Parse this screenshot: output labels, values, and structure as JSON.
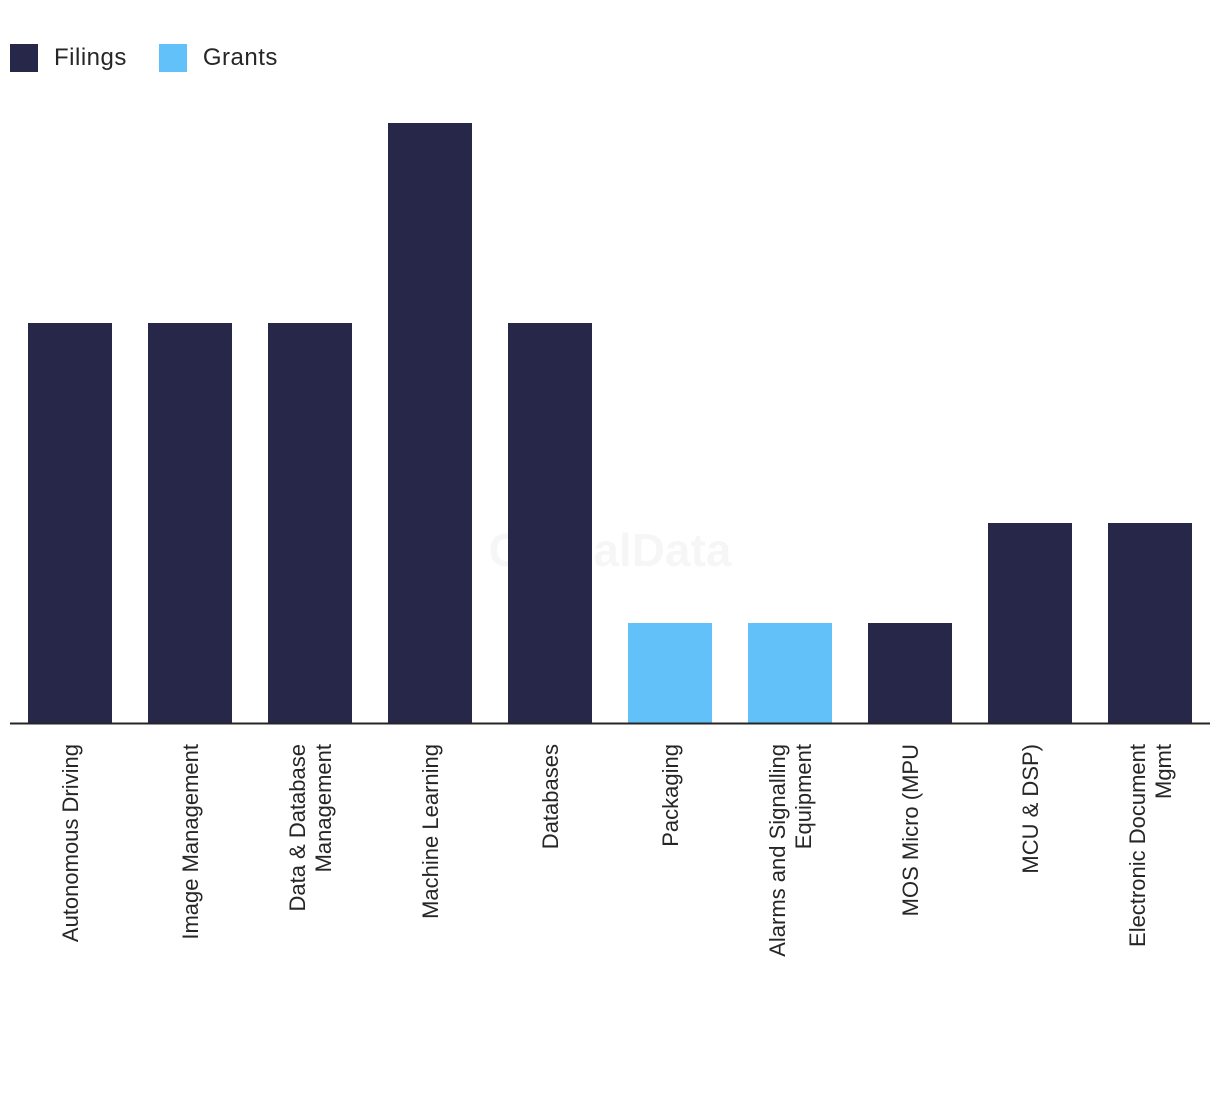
{
  "chart_data": {
    "type": "bar",
    "title": "",
    "xlabel": "",
    "ylabel": "",
    "ylim": [
      0,
      6
    ],
    "grid": false,
    "legend_position": "top-left",
    "legend": [
      {
        "name": "Filings",
        "color": "#27274a"
      },
      {
        "name": "Grants",
        "color": "#62c1f9"
      }
    ],
    "categories": [
      "Autonomous Driving",
      "Image Management",
      "Data & Database Management",
      "Machine Learning",
      "Databases",
      "Packaging",
      "Alarms and Signalling Equipment",
      "MOS Micro (MPU",
      "MCU & DSP)",
      "Electronic Document Mgmt"
    ],
    "category_lines": [
      [
        "Autonomous Driving"
      ],
      [
        "Image Management"
      ],
      [
        "Data & Database",
        "Management"
      ],
      [
        "Machine Learning"
      ],
      [
        "Databases"
      ],
      [
        "Packaging"
      ],
      [
        "Alarms and Signalling",
        "Equipment"
      ],
      [
        "MOS Micro (MPU"
      ],
      [
        "MCU & DSP)"
      ],
      [
        "Electronic Document",
        "Mgmt"
      ]
    ],
    "values": [
      4,
      4,
      4,
      6,
      4,
      1,
      1,
      1,
      2,
      2
    ],
    "bar_series": [
      "Filings",
      "Filings",
      "Filings",
      "Filings",
      "Filings",
      "Grants",
      "Grants",
      "Filings",
      "Filings",
      "Filings"
    ]
  },
  "watermark": "GlobalData"
}
